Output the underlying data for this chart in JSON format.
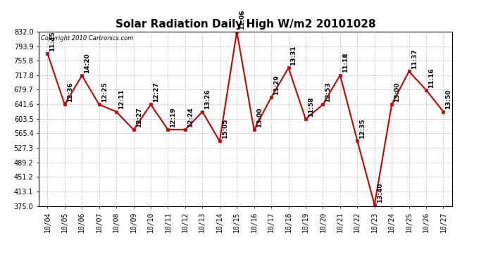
{
  "title": "Solar Radiation Daily High W/m2 20101028",
  "copyright": "Copyright 2010 Cartronics.com",
  "dates": [
    "10/04",
    "10/05",
    "10/06",
    "10/07",
    "10/08",
    "10/09",
    "10/10",
    "10/11",
    "10/12",
    "10/13",
    "10/14",
    "10/15",
    "10/16",
    "10/17",
    "10/18",
    "10/19",
    "10/20",
    "10/21",
    "10/22",
    "10/23",
    "10/24",
    "10/25",
    "10/26",
    "10/27"
  ],
  "values": [
    775,
    641,
    717,
    641,
    622,
    575,
    641,
    575,
    575,
    622,
    545,
    832,
    575,
    660,
    737,
    603,
    641,
    718,
    546,
    378,
    641,
    728,
    679,
    622
  ],
  "times": [
    "11:45",
    "12:36",
    "14:20",
    "12:25",
    "12:11",
    "12:27",
    "12:27",
    "12:19",
    "12:24",
    "13:26",
    "15:05",
    "11:06",
    "13:00",
    "11:29",
    "13:31",
    "11:58",
    "12:53",
    "11:18",
    "12:35",
    "13:40",
    "13:00",
    "11:37",
    "11:16",
    "13:50"
  ],
  "ylim": [
    375.0,
    832.0
  ],
  "ytick_labels": [
    "375.0",
    "413.1",
    "451.2",
    "489.2",
    "527.3",
    "565.4",
    "603.5",
    "641.6",
    "679.7",
    "717.8",
    "755.8",
    "793.9",
    "832.0"
  ],
  "ytick_values": [
    375.0,
    413.1,
    451.2,
    489.2,
    527.3,
    565.4,
    603.5,
    641.6,
    679.7,
    717.8,
    755.8,
    793.9,
    832.0
  ],
  "line_color": "#cc0000",
  "marker_color": "#cc0000",
  "bg_color": "#ffffff",
  "grid_color": "#bbbbbb"
}
